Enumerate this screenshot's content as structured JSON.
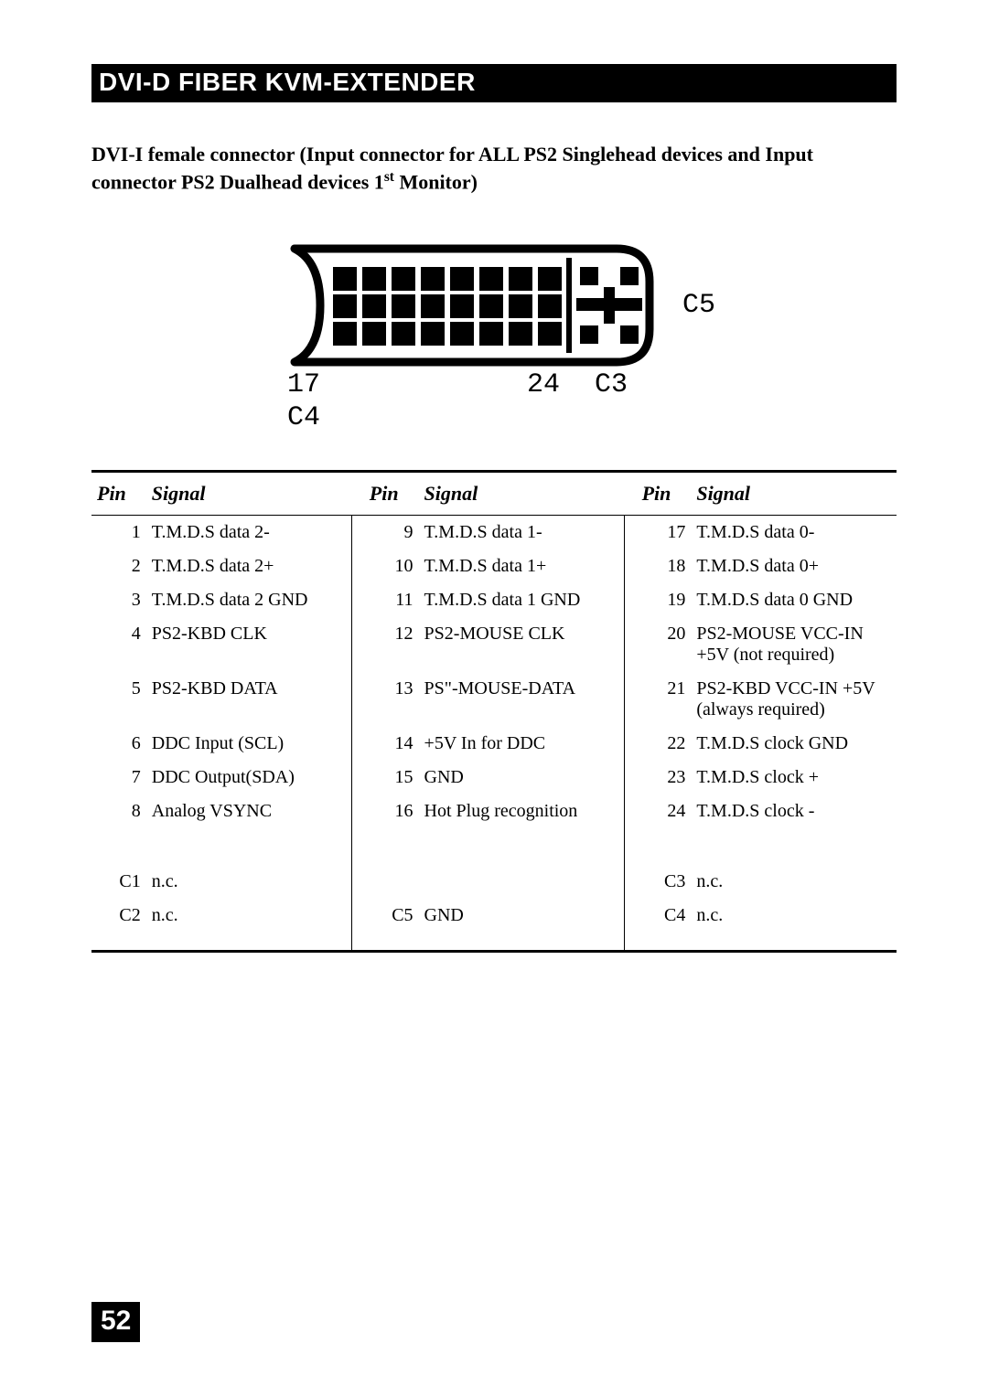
{
  "header": {
    "title": "DVI-D FIBER KVM-EXTENDER"
  },
  "subtitle_line1": "DVI-I female connector (Input connector for ALL PS2 Singlehead devices and Input",
  "subtitle_line2_pre": "connector PS2 Dualhead devices 1",
  "subtitle_line2_sup": "st",
  "subtitle_line2_post": " Monitor)",
  "connector_labels": {
    "c5": "C5",
    "l17": "17",
    "l24": "24",
    "lc3": "C3",
    "lc4": "C4"
  },
  "table": {
    "headers": [
      "Pin",
      "Signal",
      "Pin",
      "Signal",
      "Pin",
      "Signal"
    ],
    "rows_main": [
      [
        "1",
        "T.M.D.S data 2-",
        "9",
        "T.M.D.S data 1-",
        "17",
        "T.M.D.S data 0-"
      ],
      [
        "2",
        "T.M.D.S data 2+",
        "10",
        "T.M.D.S data 1+",
        "18",
        "T.M.D.S data 0+"
      ],
      [
        "3",
        "T.M.D.S data 2 GND",
        "11",
        "T.M.D.S data 1 GND",
        "19",
        "T.M.D.S data 0 GND"
      ],
      [
        "4",
        "PS2-KBD CLK",
        "12",
        "PS2-MOUSE CLK",
        "20",
        "PS2-MOUSE VCC-IN +5V (not required)"
      ],
      [
        "5",
        "PS2-KBD DATA",
        "13",
        "PS\"-MOUSE-DATA",
        "21",
        "PS2-KBD VCC-IN +5V (always required)"
      ],
      [
        "6",
        "DDC  Input (SCL)",
        "14",
        "+5V In for DDC",
        "22",
        "T.M.D.S clock GND"
      ],
      [
        "7",
        "DDC Output(SDA)",
        "15",
        "GND",
        "23",
        "T.M.D.S clock +"
      ],
      [
        "8",
        "Analog VSYNC",
        "16",
        "Hot Plug recognition",
        "24",
        "T.M.D.S clock -"
      ]
    ],
    "rows_c": [
      [
        "C1",
        "n.c.",
        "",
        "",
        "C3",
        "n.c."
      ],
      [
        "C2",
        "n.c.",
        "C5",
        "GND",
        "C4",
        "n.c."
      ]
    ]
  },
  "page_number": "52",
  "svg_style": {
    "outline_stroke": "#000000",
    "outline_width": 9,
    "pin_fill": "#000000",
    "bg": "#ffffff"
  }
}
